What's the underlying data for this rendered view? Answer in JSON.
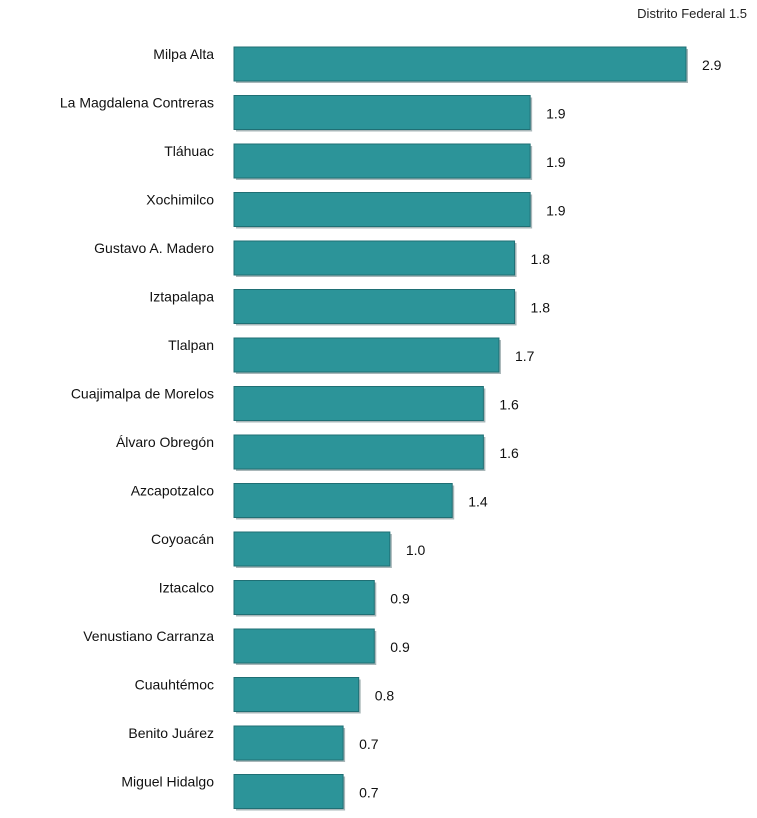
{
  "header": {
    "note": "Distrito Federal 1.5"
  },
  "colors": {
    "bar_fill": "#2c9499",
    "bar_shadow": "#a9b7b9",
    "bar_border": "#1f6f74"
  },
  "chart_data": {
    "type": "bar",
    "orientation": "horizontal",
    "title": "",
    "xlabel": "",
    "ylabel": "",
    "grid": false,
    "xlim": [
      0,
      2.9
    ],
    "categories": [
      "Milpa Alta",
      "La Magdalena Contreras",
      "Tláhuac",
      "Xochimilco",
      "Gustavo A. Madero",
      "Iztapalapa",
      "Tlalpan",
      "Cuajimalpa de Morelos",
      "Álvaro Obregón",
      "Azcapotzalco",
      "Coyoacán",
      "Iztacalco",
      "Venustiano Carranza",
      "Cuauhtémoc",
      "Benito Juárez",
      "Miguel Hidalgo"
    ],
    "values": [
      2.9,
      1.9,
      1.9,
      1.9,
      1.8,
      1.8,
      1.7,
      1.6,
      1.6,
      1.4,
      1.0,
      0.9,
      0.9,
      0.8,
      0.7,
      0.7
    ],
    "value_labels": [
      "2.9",
      "1.9",
      "1.9",
      "1.9",
      "1.8",
      "1.8",
      "1.7",
      "1.6",
      "1.6",
      "1.4",
      "1.0",
      "0.9",
      "0.9",
      "0.8",
      "0.7",
      "0.7"
    ]
  }
}
